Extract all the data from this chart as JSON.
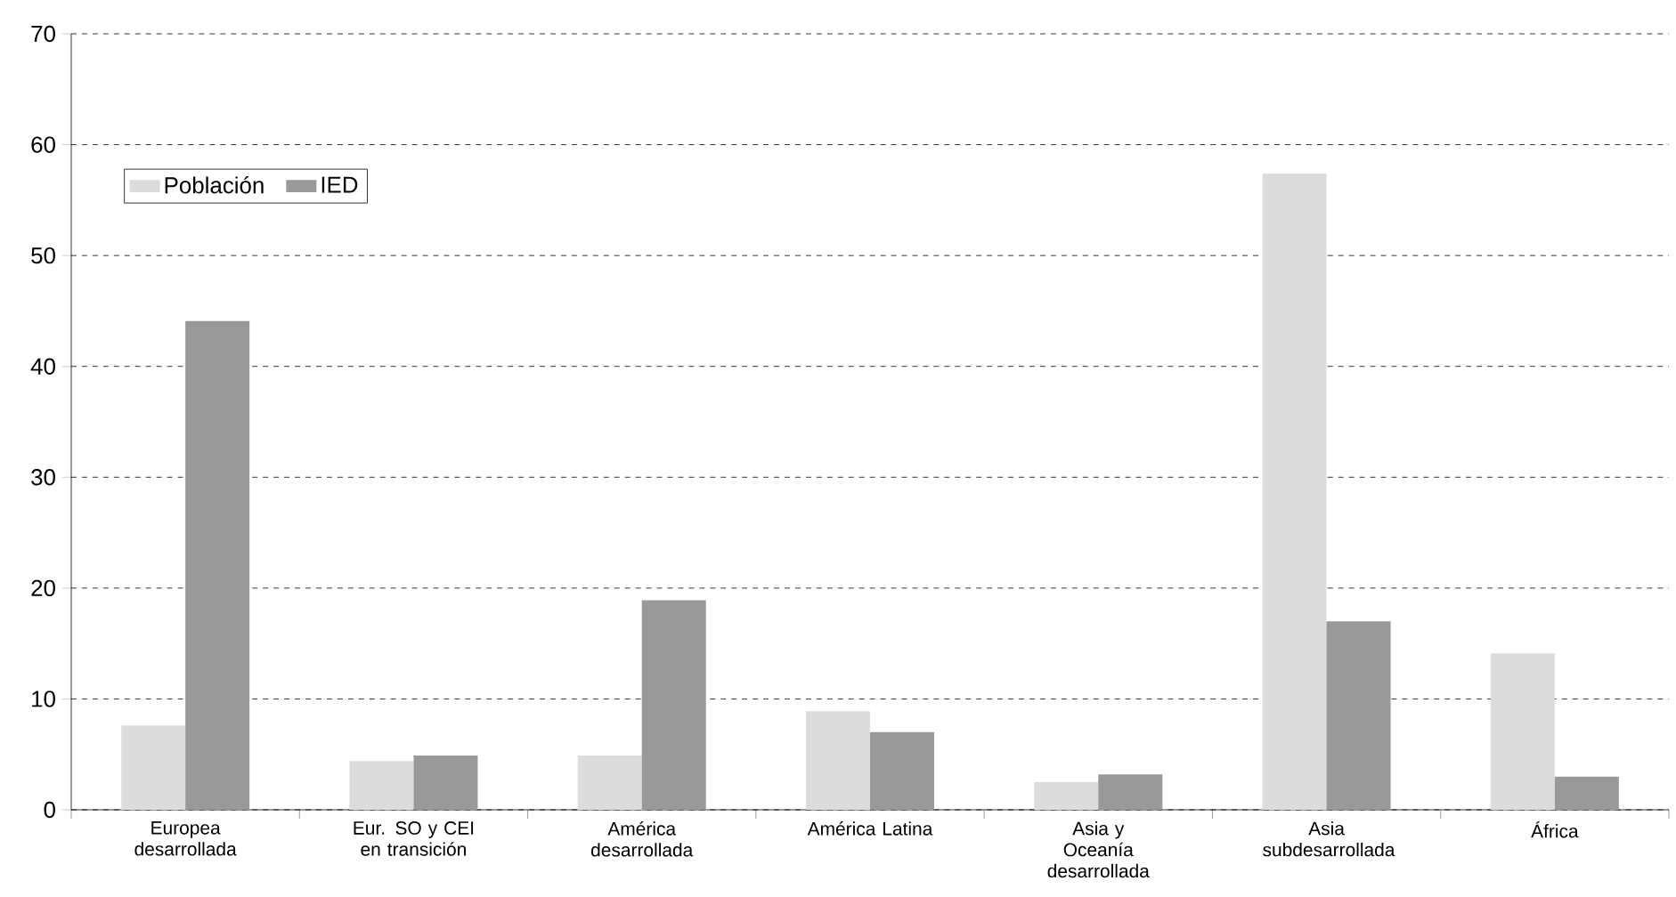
{
  "chart_data": {
    "type": "bar",
    "categories": [
      "Europea desarrollada",
      "Eur. SO y CEI en transición",
      "América desarrollada",
      "América Latina",
      "Asia y Oceanía desarrollada",
      "Asia subdesarrollada",
      "África"
    ],
    "series": [
      {
        "name": "Población",
        "color": "#dcdcdc",
        "values": [
          7.6,
          4.4,
          4.9,
          8.9,
          2.5,
          57.4,
          14.1
        ]
      },
      {
        "name": "IED",
        "color": "#999999",
        "values": [
          44.1,
          4.9,
          18.9,
          7.0,
          3.2,
          17.0,
          3.0
        ]
      }
    ],
    "ylim": [
      0,
      70
    ],
    "yticks": [
      0,
      10,
      20,
      30,
      40,
      50,
      60,
      70
    ],
    "grid": "y",
    "legend": "top left"
  }
}
